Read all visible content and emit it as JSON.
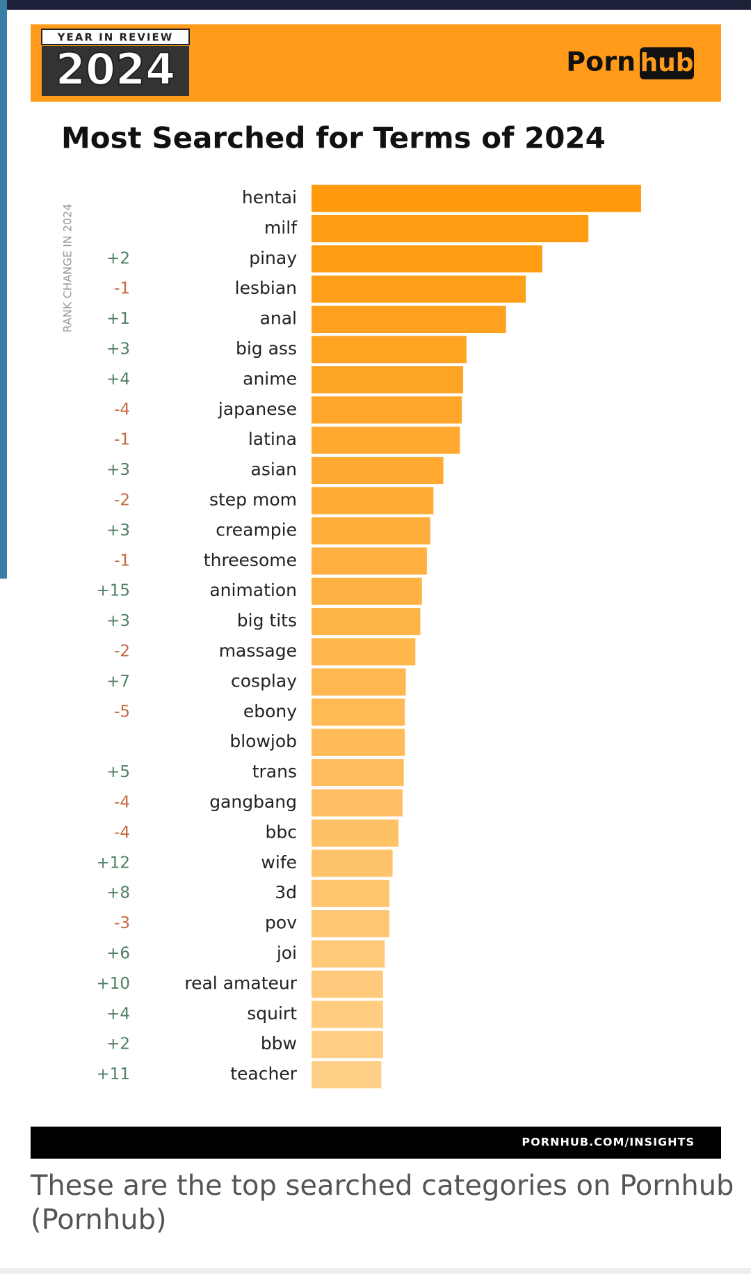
{
  "header": {
    "badge": "YEAR IN REVIEW",
    "year": "2024",
    "logo_left": "Porn",
    "logo_right": "hub"
  },
  "chart_data": {
    "type": "hbar",
    "title": "Most Searched for Terms of 2024",
    "rank_axis_label": "RANK CHANGE IN 2024",
    "categories": [
      "hentai",
      "milf",
      "pinay",
      "lesbian",
      "anal",
      "big ass",
      "anime",
      "japanese",
      "latina",
      "asian",
      "step mom",
      "creampie",
      "threesome",
      "animation",
      "big tits",
      "massage",
      "cosplay",
      "ebony",
      "blowjob",
      "trans",
      "gangbang",
      "bbc",
      "wife",
      "3d",
      "pov",
      "joi",
      "real amateur",
      "squirt",
      "bbw",
      "teacher"
    ],
    "rank_changes": [
      null,
      null,
      "+2",
      "-1",
      "+1",
      "+3",
      "+4",
      "-4",
      "-1",
      "+3",
      "-2",
      "+3",
      "-1",
      "+15",
      "+3",
      "-2",
      "+7",
      "-5",
      null,
      "+5",
      "-4",
      "-4",
      "+12",
      "+8",
      "-3",
      "+6",
      "+10",
      "+4",
      "+2",
      "+11"
    ],
    "values": [
      100,
      84,
      70,
      65,
      59,
      47,
      46,
      45.6,
      45,
      40,
      37,
      36,
      35,
      33.5,
      33,
      31.5,
      28.6,
      28.3,
      28.3,
      28,
      27.6,
      26.4,
      24.6,
      23.6,
      23.6,
      22.2,
      21.7,
      21.7,
      21.7,
      21.2
    ],
    "xlim": [
      0,
      100
    ],
    "color_start": "#ff9a0d",
    "color_end": "#ffd088",
    "positive_color": "#4f7f63",
    "negative_color": "#c86a3e"
  },
  "footer": "PORNHUB.COM/INSIGHTS",
  "caption": [
    "These are the top searched categories on Pornhub",
    "(Pornhub)"
  ]
}
